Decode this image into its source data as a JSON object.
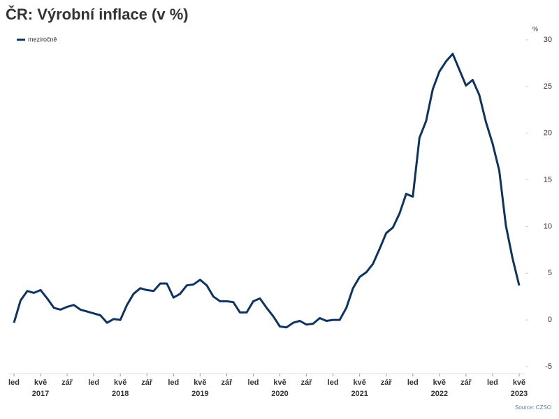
{
  "chart_data": {
    "type": "line",
    "title": "ČR: Výrobní inflace (v %)",
    "y_unit": "%",
    "source": "Source: CZSO",
    "legend": "top-left",
    "categories": [
      "led",
      null,
      null,
      null,
      "kvě",
      null,
      null,
      null,
      "zář",
      null,
      null,
      null,
      "led",
      null,
      null,
      null,
      "kvě",
      null,
      null,
      null,
      "zář",
      null,
      null,
      null,
      "led",
      null,
      null,
      null,
      "kvě",
      null,
      null,
      null,
      "zář",
      null,
      null,
      null,
      "led",
      null,
      null,
      null,
      "kvě",
      null,
      null,
      null,
      "zář",
      null,
      null,
      null,
      "led",
      null,
      null,
      null,
      "kvě",
      null,
      null,
      null,
      "zář",
      null,
      null,
      null,
      "led",
      null,
      null,
      null,
      "kvě",
      null,
      null,
      null,
      "zář",
      null,
      null,
      null,
      "led",
      null,
      null,
      null,
      "kvě"
    ],
    "years": [
      "2017",
      "2018",
      "2019",
      "2020",
      "2021",
      "2022",
      "2023"
    ],
    "series": [
      {
        "name": "meziročně",
        "color": "#0d3461",
        "values": [
          -0.3,
          2.1,
          3.1,
          2.9,
          3.2,
          2.3,
          1.3,
          1.1,
          1.4,
          1.6,
          1.1,
          0.9,
          0.7,
          0.5,
          -0.3,
          0.1,
          0.0,
          1.6,
          2.8,
          3.4,
          3.2,
          3.1,
          3.9,
          3.9,
          2.4,
          2.8,
          3.7,
          3.8,
          4.3,
          3.7,
          2.5,
          2.0,
          2.0,
          1.9,
          0.8,
          0.8,
          2.0,
          2.3,
          1.3,
          0.4,
          -0.7,
          -0.8,
          -0.3,
          -0.1,
          -0.5,
          -0.4,
          0.2,
          -0.1,
          0.0,
          0.0,
          1.3,
          3.4,
          4.6,
          5.1,
          6.0,
          7.6,
          9.3,
          9.9,
          11.4,
          13.5,
          13.2,
          19.5,
          21.3,
          24.7,
          26.6,
          27.7,
          28.5,
          26.8,
          25.1,
          25.7,
          24.1,
          21.2,
          18.9,
          16.0,
          10.1,
          6.6,
          3.7
        ]
      }
    ],
    "ylim": [
      -5,
      30
    ],
    "yticks": [
      -5,
      0,
      5,
      10,
      15,
      20,
      25,
      30
    ]
  }
}
